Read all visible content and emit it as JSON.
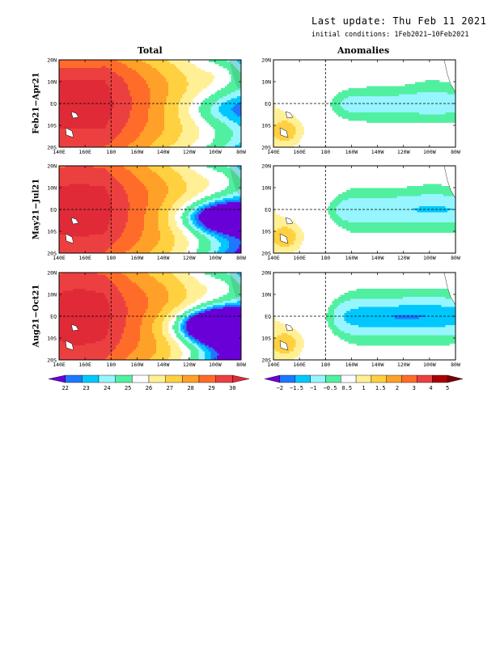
{
  "header": {
    "last_update": "Last update: Thu Feb 11 2021",
    "initial_conditions": "initial conditions: 1Feb2021−10Feb2021"
  },
  "chart_data": [
    {
      "type": "heatmap",
      "title": "Total",
      "rows": [
        "Feb21−Apr21",
        "May21−Jul21",
        "Aug21−Oct21"
      ],
      "x_ticks": [
        "140E",
        "160E",
        "180",
        "160W",
        "140W",
        "120W",
        "100W",
        "80W"
      ],
      "y_ticks": [
        "20N",
        "10N",
        "EQ",
        "10S",
        "20S"
      ],
      "xlim": [
        "140E",
        "80W"
      ],
      "ylim": [
        "20S",
        "20N"
      ],
      "dashed_reference_lines": [
        "180",
        "EQ"
      ],
      "colorbar": {
        "labels": [
          "22",
          "23",
          "24",
          "25",
          "26",
          "27",
          "28",
          "29",
          "30"
        ],
        "colors": [
          "#6a00d8",
          "#1e78ff",
          "#00c8ff",
          "#96f5ff",
          "#50f0a0",
          "#ffffff",
          "#fff096",
          "#ffd040",
          "#ffa028",
          "#ff6c2a",
          "#ec4040",
          "#e02a38"
        ]
      }
    },
    {
      "type": "heatmap",
      "title": "Anomalies",
      "rows": [
        "Feb21−Apr21",
        "May21−Jul21",
        "Aug21−Oct21"
      ],
      "x_ticks": [
        "140E",
        "160E",
        "180",
        "160W",
        "140W",
        "120W",
        "100W",
        "80W"
      ],
      "y_ticks": [
        "20N",
        "10N",
        "EQ",
        "10S",
        "20S"
      ],
      "xlim": [
        "140E",
        "80W"
      ],
      "ylim": [
        "20S",
        "20N"
      ],
      "dashed_reference_lines": [
        "180",
        "EQ"
      ],
      "colorbar": {
        "labels": [
          "−2",
          "−1.5",
          "−1",
          "−0.5",
          "0.5",
          "1",
          "1.5",
          "2",
          "3",
          "4",
          "5"
        ],
        "colors": [
          "#6a00d8",
          "#1e78ff",
          "#00c8ff",
          "#96f5ff",
          "#50f0a0",
          "#ffffff",
          "#fff096",
          "#ffd040",
          "#ffa028",
          "#ff6c2a",
          "#ec4040",
          "#aa0000",
          "#7a0000"
        ]
      }
    }
  ]
}
